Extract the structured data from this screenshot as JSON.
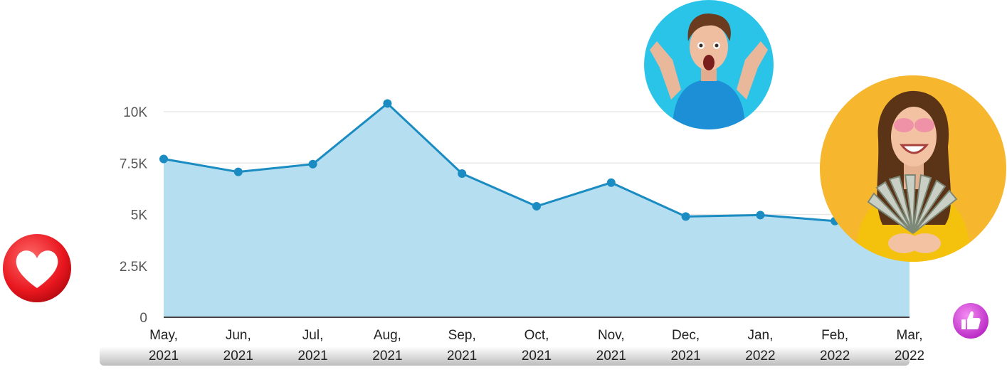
{
  "chart_data": {
    "type": "area",
    "categories": [
      [
        "May,",
        "2021"
      ],
      [
        "Jun,",
        "2021"
      ],
      [
        "Jul,",
        "2021"
      ],
      [
        "Aug,",
        "2021"
      ],
      [
        "Sep,",
        "2021"
      ],
      [
        "Oct,",
        "2021"
      ],
      [
        "Nov,",
        "2021"
      ],
      [
        "Dec,",
        "2021"
      ],
      [
        "Jan,",
        "2022"
      ],
      [
        "Feb,",
        "2022"
      ],
      [
        "Mar,",
        "2022"
      ]
    ],
    "values": [
      7700,
      7070,
      7450,
      10400,
      6990,
      5400,
      6550,
      4900,
      4970,
      4680,
      5700
    ],
    "yticks": [
      0,
      2500,
      5000,
      7500,
      10000
    ],
    "ytick_labels": [
      "0",
      "2.5K",
      "5K",
      "7.5K",
      "10K"
    ],
    "ylim": [
      0,
      10000
    ],
    "title": "",
    "xlabel": "",
    "ylabel": "",
    "grid": true,
    "colors": {
      "line": "#1a8cc2",
      "fill": "#b5def0",
      "grid": "#e8e8e8",
      "axis": "#444444"
    }
  },
  "decorations": {
    "heart_badge_icon": "heart-icon",
    "like_badge_icon": "thumbs-up-icon",
    "photo_man": "surprised-man-photo",
    "photo_woman": "woman-with-money-photo"
  }
}
